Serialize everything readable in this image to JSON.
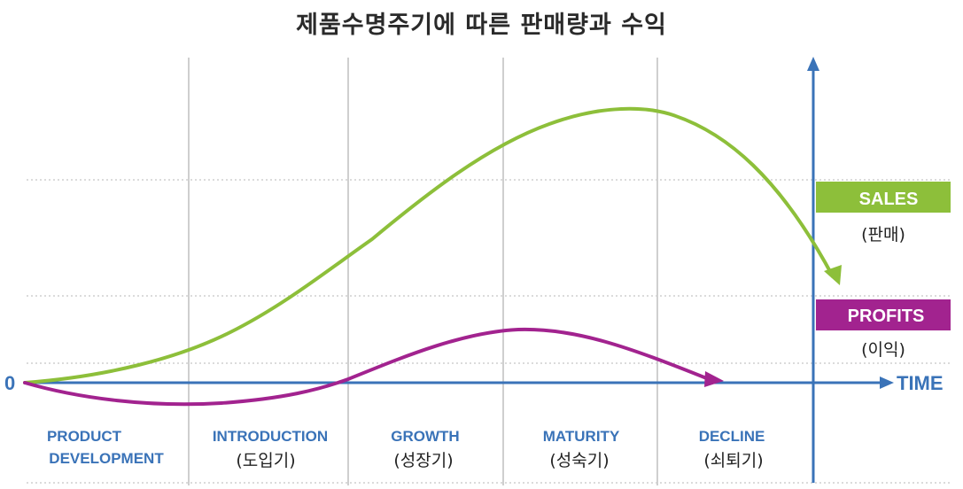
{
  "title": "제품수명주기에 따른 판매량과 수익",
  "axis": {
    "origin_label": "0",
    "x_label": "TIME"
  },
  "stages": [
    {
      "en_line1": "PRODUCT",
      "en_line2": "DEVELOPMENT",
      "ko": ""
    },
    {
      "en_line1": "INTRODUCTION",
      "en_line2": "",
      "ko": "(도입기)"
    },
    {
      "en_line1": "GROWTH",
      "en_line2": "",
      "ko": "(성장기)"
    },
    {
      "en_line1": "MATURITY",
      "en_line2": "",
      "ko": "(성숙기)"
    },
    {
      "en_line1": "DECLINE",
      "en_line2": "",
      "ko": "(쇠퇴기)"
    }
  ],
  "legend": {
    "sales": {
      "label": "SALES",
      "sub": "(판매)",
      "color": "#8dbf3a"
    },
    "profits": {
      "label": "PROFITS",
      "sub": "(이익)",
      "color": "#a2238f"
    }
  },
  "colors": {
    "axis": "#3a73b8",
    "grid": "#c8c8c8"
  }
}
